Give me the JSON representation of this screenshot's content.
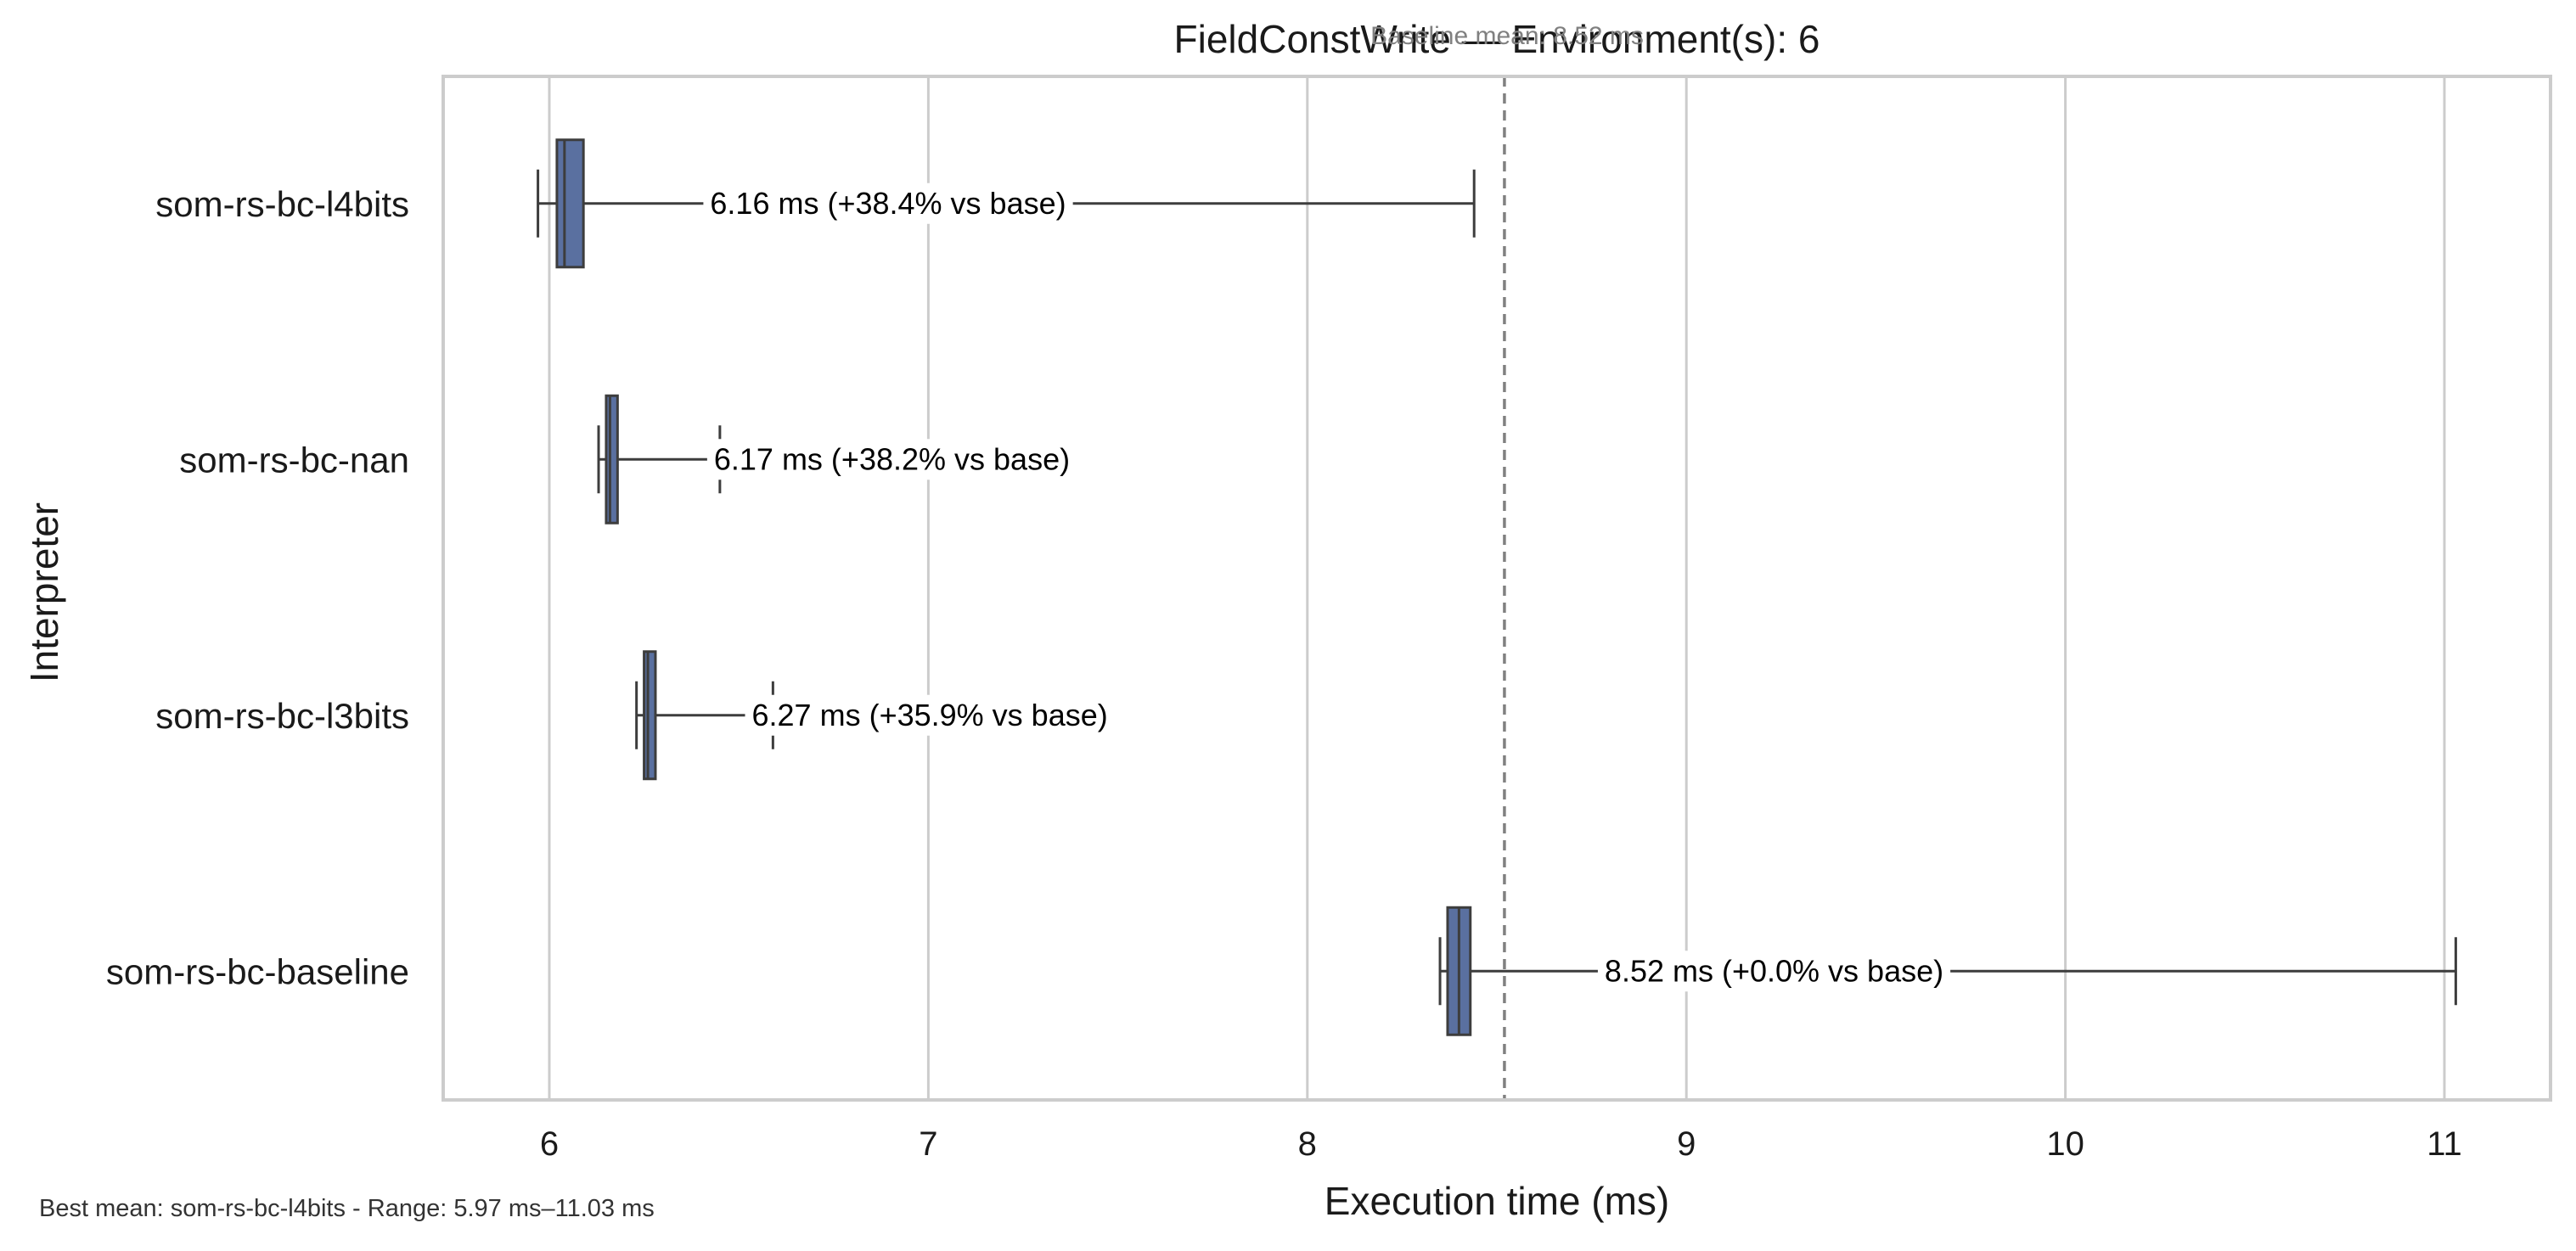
{
  "chart_data": {
    "type": "box",
    "title": "FieldConstWrite — Environment(s): 6",
    "baseline_annotation": "Baseline mean: 8.52 ms",
    "xlabel": "Execution time (ms)",
    "ylabel": "Interpreter",
    "xlim": [
      5.72,
      11.28
    ],
    "xticks": [
      "6",
      "7",
      "8",
      "9",
      "10",
      "11"
    ],
    "grid": "vertical",
    "baseline_mean": 8.52,
    "categories": [
      "som-rs-bc-l4bits",
      "som-rs-bc-nan",
      "som-rs-bc-l3bits",
      "som-rs-bc-baseline"
    ],
    "boxes": [
      {
        "name": "som-rs-bc-l4bits",
        "whisker_low": 5.97,
        "q1": 6.02,
        "median": 6.04,
        "q3": 6.09,
        "whisker_high": 8.44,
        "mean": 6.16,
        "label": "6.16 ms  (+38.4% vs base)"
      },
      {
        "name": "som-rs-bc-nan",
        "whisker_low": 6.13,
        "q1": 6.15,
        "median": 6.16,
        "q3": 6.18,
        "whisker_high": 6.45,
        "mean": 6.17,
        "label": "6.17 ms  (+38.2% vs base)"
      },
      {
        "name": "som-rs-bc-l3bits",
        "whisker_low": 6.23,
        "q1": 6.25,
        "median": 6.26,
        "q3": 6.28,
        "whisker_high": 6.59,
        "mean": 6.27,
        "label": "6.27 ms  (+35.9% vs base)"
      },
      {
        "name": "som-rs-bc-baseline",
        "whisker_low": 8.35,
        "q1": 8.37,
        "median": 8.4,
        "q3": 8.43,
        "whisker_high": 11.03,
        "mean": 8.52,
        "label": "8.52 ms  (+0.0% vs base)"
      }
    ],
    "colors": {
      "box": "#5a70a0",
      "line": "#3d3d3d",
      "grid": "#cccccc",
      "baseline": "#808080",
      "frame": "#cccccc"
    },
    "footnote": "Best mean: som-rs-bc-l4bits - Range: 5.97 ms–11.03 ms"
  }
}
